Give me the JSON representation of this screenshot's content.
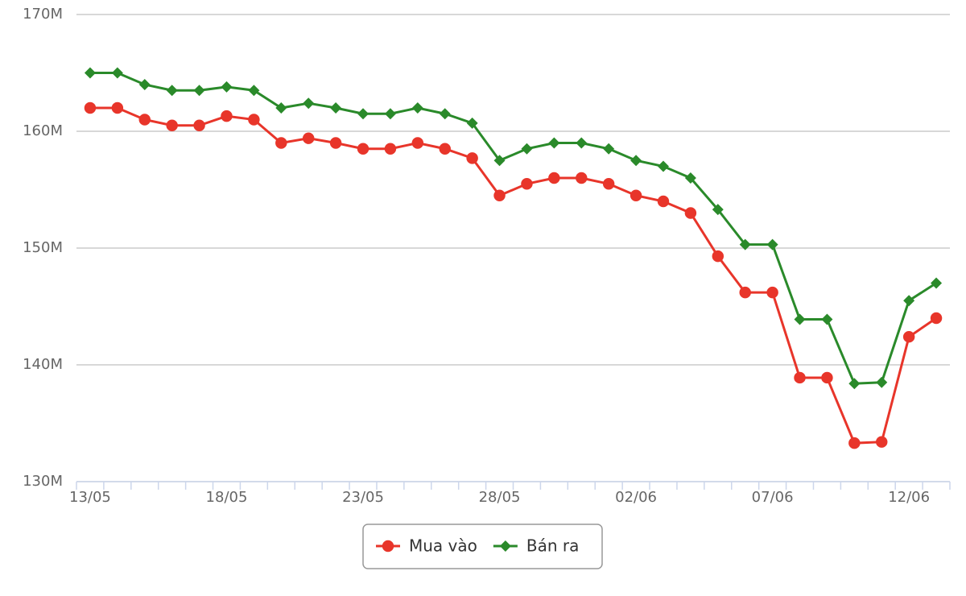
{
  "chart_data": {
    "type": "line",
    "categories": [
      "13/05",
      null,
      null,
      null,
      null,
      "18/05",
      null,
      null,
      null,
      null,
      "23/05",
      null,
      null,
      null,
      null,
      "28/05",
      null,
      null,
      null,
      null,
      "02/06",
      null,
      null,
      null,
      null,
      "07/06",
      null,
      null,
      null,
      null,
      "12/06",
      null
    ],
    "series": [
      {
        "name": "Mua vào",
        "color": "#e8352a",
        "marker": "circle",
        "values": [
          162,
          162,
          161,
          160.5,
          160.5,
          161.3,
          161,
          159,
          159.4,
          159,
          158.5,
          158.5,
          159,
          158.5,
          157.7,
          154.5,
          155.5,
          156,
          156,
          155.5,
          154.5,
          154,
          153,
          149.3,
          146.2,
          146.2,
          138.9,
          138.9,
          133.3,
          133.4,
          142.4,
          144
        ]
      },
      {
        "name": "Bán ra",
        "color": "#2a8a2a",
        "marker": "diamond",
        "values": [
          165,
          165,
          164,
          163.5,
          163.5,
          163.8,
          163.5,
          162,
          162.4,
          162,
          161.5,
          161.5,
          162,
          161.5,
          160.7,
          157.5,
          158.5,
          159,
          159,
          158.5,
          157.5,
          157,
          156,
          153.3,
          150.3,
          150.3,
          143.9,
          143.9,
          138.4,
          138.5,
          145.5,
          147
        ]
      }
    ],
    "ylim": [
      130,
      170
    ],
    "yticks": [
      {
        "value": 130,
        "label": "130M"
      },
      {
        "value": 140,
        "label": "140M"
      },
      {
        "value": 150,
        "label": "150M"
      },
      {
        "value": 160,
        "label": "160M"
      },
      {
        "value": 170,
        "label": "170M"
      }
    ],
    "grid": true,
    "legend": "bottom"
  }
}
